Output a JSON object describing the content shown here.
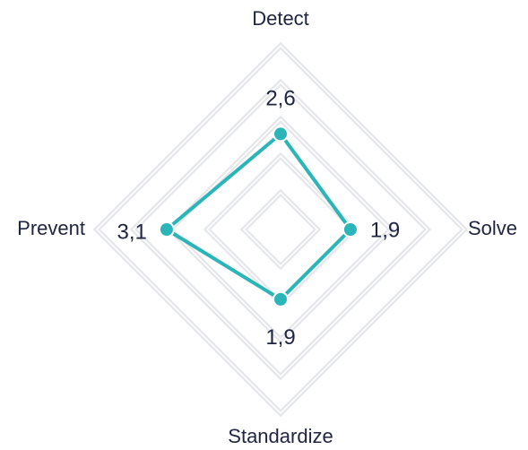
{
  "chart_data": {
    "type": "radar",
    "categories": [
      "Detect",
      "Solve",
      "Standardize",
      "Prevent"
    ],
    "series": [
      {
        "color": "#2bb5b8",
        "values": [
          2.6,
          1.9,
          1.9,
          3.1
        ],
        "value_labels": [
          "2,6",
          "1,9",
          "1,9",
          "3,1"
        ]
      }
    ],
    "rlim": [
      0,
      5
    ],
    "rticks": [
      1,
      2,
      3,
      4,
      5
    ],
    "grid": true,
    "grid_color": "#e6e7ea"
  }
}
